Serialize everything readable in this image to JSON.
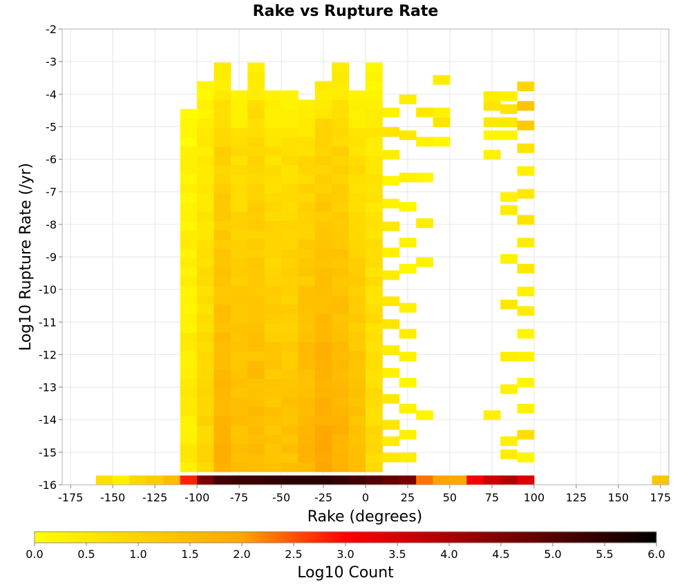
{
  "chart_data": {
    "type": "heatmap",
    "title": "Rake vs Rupture Rate",
    "xlabel": "Rake (degrees)",
    "ylabel": "Log10 Rupture Rate (/yr)",
    "colorbar_label": "Log10 Count",
    "xlim": [
      -180,
      180
    ],
    "ylim": [
      -16,
      -2
    ],
    "x_ticks": [
      "-175",
      "-150",
      "-125",
      "-100",
      "-75",
      "-50",
      "-25",
      "0",
      "25",
      "50",
      "75",
      "100",
      "125",
      "150",
      "175"
    ],
    "y_ticks": [
      "-2",
      "-3",
      "-4",
      "-5",
      "-6",
      "-7",
      "-8",
      "-9",
      "-10",
      "-11",
      "-12",
      "-13",
      "-14",
      "-15",
      "-16"
    ],
    "colorbar_ticks": [
      "0.0",
      "0.5",
      "1.0",
      "1.5",
      "2.0",
      "2.5",
      "3.0",
      "3.5",
      "4.0",
      "4.5",
      "5.0",
      "5.5",
      "6.0"
    ],
    "colorbar_range": [
      0,
      6
    ],
    "colorscale": [
      "#ffff00",
      "#ffa500",
      "#ff0000",
      "#000000"
    ],
    "grid": true,
    "legend": "colorbar-bottom",
    "bin_width_degrees": 10,
    "bin_height_log10": 0.2857,
    "bottom_row": {
      "y": -16,
      "cells": [
        [
          -155,
          0.7
        ],
        [
          -145,
          0.3
        ],
        [
          -135,
          0.9
        ],
        [
          -125,
          1.1
        ],
        [
          -115,
          1.5
        ],
        [
          -105,
          2.8
        ],
        [
          -95,
          4.6
        ],
        [
          -85,
          5.2
        ],
        [
          -75,
          5.3
        ],
        [
          -65,
          5.3
        ],
        [
          -55,
          5.4
        ],
        [
          -45,
          5.5
        ],
        [
          -35,
          5.5
        ],
        [
          -25,
          5.5
        ],
        [
          -15,
          5.4
        ],
        [
          -5,
          5.2
        ],
        [
          5,
          5.0
        ],
        [
          15,
          4.8
        ],
        [
          25,
          4.6
        ],
        [
          35,
          2.3
        ],
        [
          45,
          2.0
        ],
        [
          55,
          1.9
        ],
        [
          65,
          3.1
        ],
        [
          75,
          3.6
        ],
        [
          85,
          3.9
        ],
        [
          95,
          3.4
        ],
        [
          175,
          1.3
        ]
      ]
    },
    "columns": [
      {
        "x": -105,
        "y_range": [
          -15.6,
          -4.5
        ],
        "peak": 0.5
      },
      {
        "x": -95,
        "y_range": [
          -15.6,
          -3.7
        ],
        "peak": 1.1
      },
      {
        "x": -85,
        "y_range": [
          -15.6,
          -3.0
        ],
        "peak": 2.0
      },
      {
        "x": -75,
        "y_range": [
          -15.6,
          -3.9
        ],
        "peak": 1.7
      },
      {
        "x": -65,
        "y_range": [
          -15.6,
          -3.0
        ],
        "peak": 1.8
      },
      {
        "x": -55,
        "y_range": [
          -15.6,
          -3.9
        ],
        "peak": 1.6
      },
      {
        "x": -45,
        "y_range": [
          -15.6,
          -3.9
        ],
        "peak": 1.6
      },
      {
        "x": -35,
        "y_range": [
          -15.6,
          -4.2
        ],
        "peak": 1.9
      },
      {
        "x": -25,
        "y_range": [
          -15.6,
          -3.7
        ],
        "peak": 2.2
      },
      {
        "x": -15,
        "y_range": [
          -15.6,
          -3.0
        ],
        "peak": 2.0
      },
      {
        "x": -5,
        "y_range": [
          -15.6,
          -3.9
        ],
        "peak": 1.6
      },
      {
        "x": 5,
        "y_range": [
          -15.6,
          -3.0
        ],
        "peak": 1.0
      }
    ]
  }
}
